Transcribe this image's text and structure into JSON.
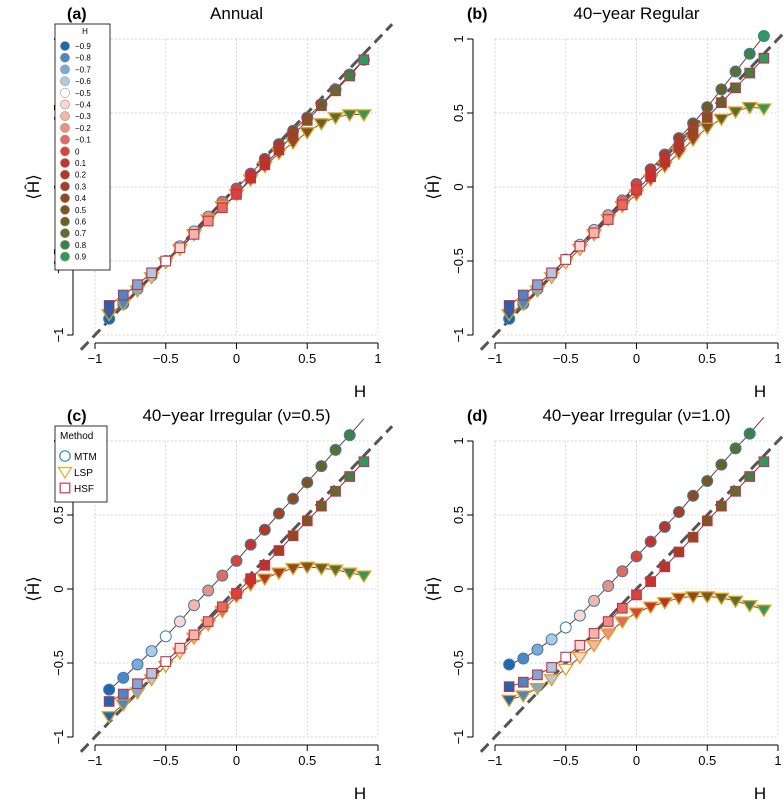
{
  "chart_data": [
    {
      "type": "scatter",
      "panel_label": "(a)",
      "title": "Annual",
      "xlabel": "H",
      "ylabel": "⟨Ĥ⟩",
      "xlim": [
        -1,
        1
      ],
      "ylim": [
        -1,
        1
      ],
      "x_ticks": [
        "−1",
        "−0.5",
        "0",
        "0.5",
        "1"
      ],
      "y_ticks": [
        "−1",
        "−0.5",
        "0",
        "0.5",
        "1"
      ],
      "grid": true,
      "legend": {
        "title": "H",
        "placement": "top-left",
        "entries": [
          "−0.9",
          "−0.8",
          "−0.7",
          "−0.6",
          "−0.5",
          "−0.4",
          "−0.3",
          "−0.2",
          "−0.1",
          "0",
          "0.1",
          "0.2",
          "0.3",
          "0.4",
          "0.5",
          "0.6",
          "0.7",
          "0.8",
          "0.9"
        ]
      },
      "x": [
        -0.9,
        -0.8,
        -0.7,
        -0.6,
        -0.5,
        -0.4,
        -0.3,
        -0.2,
        -0.1,
        0,
        0.1,
        0.2,
        0.3,
        0.4,
        0.5,
        0.6,
        0.7,
        0.8,
        0.9
      ],
      "series": [
        {
          "name": "MTM",
          "values": [
            -0.89,
            -0.79,
            -0.69,
            -0.6,
            -0.5,
            -0.4,
            -0.3,
            -0.2,
            -0.1,
            -0.01,
            0.09,
            0.19,
            0.29,
            0.38,
            0.47,
            0.56,
            0.66,
            0.76,
            0.86
          ]
        },
        {
          "name": "LSP",
          "values": [
            -0.86,
            -0.79,
            -0.7,
            -0.61,
            -0.51,
            -0.42,
            -0.32,
            -0.22,
            -0.13,
            -0.05,
            0.05,
            0.14,
            0.23,
            0.3,
            0.37,
            0.43,
            0.47,
            0.49,
            0.49
          ]
        },
        {
          "name": "HSF",
          "values": [
            -0.8,
            -0.73,
            -0.66,
            -0.58,
            -0.5,
            -0.41,
            -0.32,
            -0.23,
            -0.14,
            -0.05,
            0.06,
            0.15,
            0.25,
            0.35,
            0.45,
            0.55,
            0.65,
            0.75,
            0.86
          ]
        }
      ]
    },
    {
      "type": "scatter",
      "panel_label": "(b)",
      "title": "40−year Regular",
      "xlabel": "H",
      "ylabel": "⟨Ĥ⟩",
      "xlim": [
        -1,
        1
      ],
      "ylim": [
        -1,
        1
      ],
      "x_ticks": [
        "−1",
        "−0.5",
        "0",
        "0.5",
        "1"
      ],
      "y_ticks": [
        "−1",
        "−0.5",
        "0",
        "0.5",
        "1"
      ],
      "grid": true,
      "x": [
        -0.9,
        -0.8,
        -0.7,
        -0.6,
        -0.5,
        -0.4,
        -0.3,
        -0.2,
        -0.1,
        0,
        0.1,
        0.2,
        0.3,
        0.4,
        0.5,
        0.6,
        0.7,
        0.8,
        0.9
      ],
      "series": [
        {
          "name": "MTM",
          "values": [
            -0.89,
            -0.79,
            -0.69,
            -0.59,
            -0.49,
            -0.39,
            -0.29,
            -0.19,
            -0.09,
            0.02,
            0.12,
            0.22,
            0.33,
            0.43,
            0.54,
            0.66,
            0.78,
            0.9,
            1.02
          ]
        },
        {
          "name": "LSP",
          "values": [
            -0.86,
            -0.79,
            -0.7,
            -0.61,
            -0.51,
            -0.42,
            -0.32,
            -0.22,
            -0.13,
            -0.05,
            0.05,
            0.14,
            0.23,
            0.32,
            0.4,
            0.46,
            0.51,
            0.54,
            0.53
          ]
        },
        {
          "name": "HSF",
          "values": [
            -0.8,
            -0.73,
            -0.66,
            -0.58,
            -0.49,
            -0.4,
            -0.31,
            -0.22,
            -0.12,
            -0.02,
            0.07,
            0.17,
            0.27,
            0.37,
            0.47,
            0.57,
            0.67,
            0.77,
            0.87
          ]
        }
      ]
    },
    {
      "type": "scatter",
      "panel_label": "(c)",
      "title": "40−year Irregular (ν=0.5)",
      "xlabel": "H",
      "ylabel": "⟨Ĥ⟩",
      "xlim": [
        -1,
        1
      ],
      "ylim": [
        -1,
        1
      ],
      "x_ticks": [
        "−1",
        "−0.5",
        "0",
        "0.5",
        "1"
      ],
      "y_ticks": [
        "−1",
        "−0.5",
        "0",
        "0.5",
        "1"
      ],
      "grid": true,
      "legend": {
        "title": "Method",
        "placement": "top-left",
        "entries": [
          "MTM",
          "LSP",
          "HSF"
        ]
      },
      "x": [
        -0.9,
        -0.8,
        -0.7,
        -0.6,
        -0.5,
        -0.4,
        -0.3,
        -0.2,
        -0.1,
        0,
        0.1,
        0.2,
        0.3,
        0.4,
        0.5,
        0.6,
        0.7,
        0.8,
        0.9
      ],
      "series": [
        {
          "name": "MTM",
          "values": [
            -0.68,
            -0.6,
            -0.51,
            -0.42,
            -0.32,
            -0.22,
            -0.11,
            -0.01,
            0.09,
            0.19,
            0.3,
            0.4,
            0.51,
            0.61,
            0.72,
            0.83,
            0.94,
            1.04,
            1.15
          ]
        },
        {
          "name": "LSP",
          "values": [
            -0.86,
            -0.78,
            -0.7,
            -0.61,
            -0.52,
            -0.43,
            -0.33,
            -0.24,
            -0.15,
            -0.05,
            0.03,
            0.07,
            0.11,
            0.14,
            0.15,
            0.14,
            0.13,
            0.11,
            0.09
          ]
        },
        {
          "name": "HSF",
          "values": [
            -0.76,
            -0.71,
            -0.64,
            -0.57,
            -0.49,
            -0.4,
            -0.31,
            -0.22,
            -0.12,
            -0.03,
            0.07,
            0.16,
            0.26,
            0.36,
            0.46,
            0.56,
            0.66,
            0.76,
            0.86
          ]
        }
      ]
    },
    {
      "type": "scatter",
      "panel_label": "(d)",
      "title": "40−year Irregular (ν=1.0)",
      "xlabel": "H",
      "ylabel": "⟨Ĥ⟩",
      "xlim": [
        -1,
        1
      ],
      "ylim": [
        -1,
        1
      ],
      "x_ticks": [
        "−1",
        "−0.5",
        "0",
        "0.5",
        "1"
      ],
      "y_ticks": [
        "−1",
        "−0.5",
        "0",
        "0.5",
        "1"
      ],
      "grid": true,
      "x": [
        -0.9,
        -0.8,
        -0.7,
        -0.6,
        -0.5,
        -0.4,
        -0.3,
        -0.2,
        -0.1,
        0,
        0.1,
        0.2,
        0.3,
        0.4,
        0.5,
        0.6,
        0.7,
        0.8,
        0.9
      ],
      "series": [
        {
          "name": "MTM",
          "values": [
            -0.51,
            -0.47,
            -0.41,
            -0.34,
            -0.26,
            -0.18,
            -0.08,
            0.02,
            0.12,
            0.22,
            0.32,
            0.42,
            0.52,
            0.63,
            0.73,
            0.84,
            0.95,
            1.05,
            1.16
          ]
        },
        {
          "name": "LSP",
          "values": [
            -0.75,
            -0.72,
            -0.67,
            -0.61,
            -0.54,
            -0.46,
            -0.38,
            -0.3,
            -0.22,
            -0.16,
            -0.12,
            -0.09,
            -0.06,
            -0.05,
            -0.05,
            -0.06,
            -0.08,
            -0.11,
            -0.14
          ]
        },
        {
          "name": "HSF",
          "values": [
            -0.66,
            -0.63,
            -0.58,
            -0.53,
            -0.46,
            -0.38,
            -0.3,
            -0.22,
            -0.13,
            -0.04,
            0.05,
            0.15,
            0.25,
            0.35,
            0.46,
            0.56,
            0.66,
            0.76,
            0.86
          ]
        }
      ]
    }
  ],
  "palette": [
    "#2166ac",
    "#4a87c3",
    "#7ea9d4",
    "#b0c9e3",
    "#ffffff",
    "#fbd7cf",
    "#f5b5a9",
    "#ee9182",
    "#e36a5c",
    "#d8443a",
    "#c8322a",
    "#b83626",
    "#a53f1f",
    "#8f4b1d",
    "#7b5620",
    "#6b6126",
    "#5b7030",
    "#427f45",
    "#2f9a5a"
  ],
  "colors": {
    "MTM_open": "#2e8fb5",
    "LSP_open": "#f5a623",
    "HSF_open": "#d8304a",
    "identity_line": "#555555",
    "grid": "#bbbbbb"
  }
}
